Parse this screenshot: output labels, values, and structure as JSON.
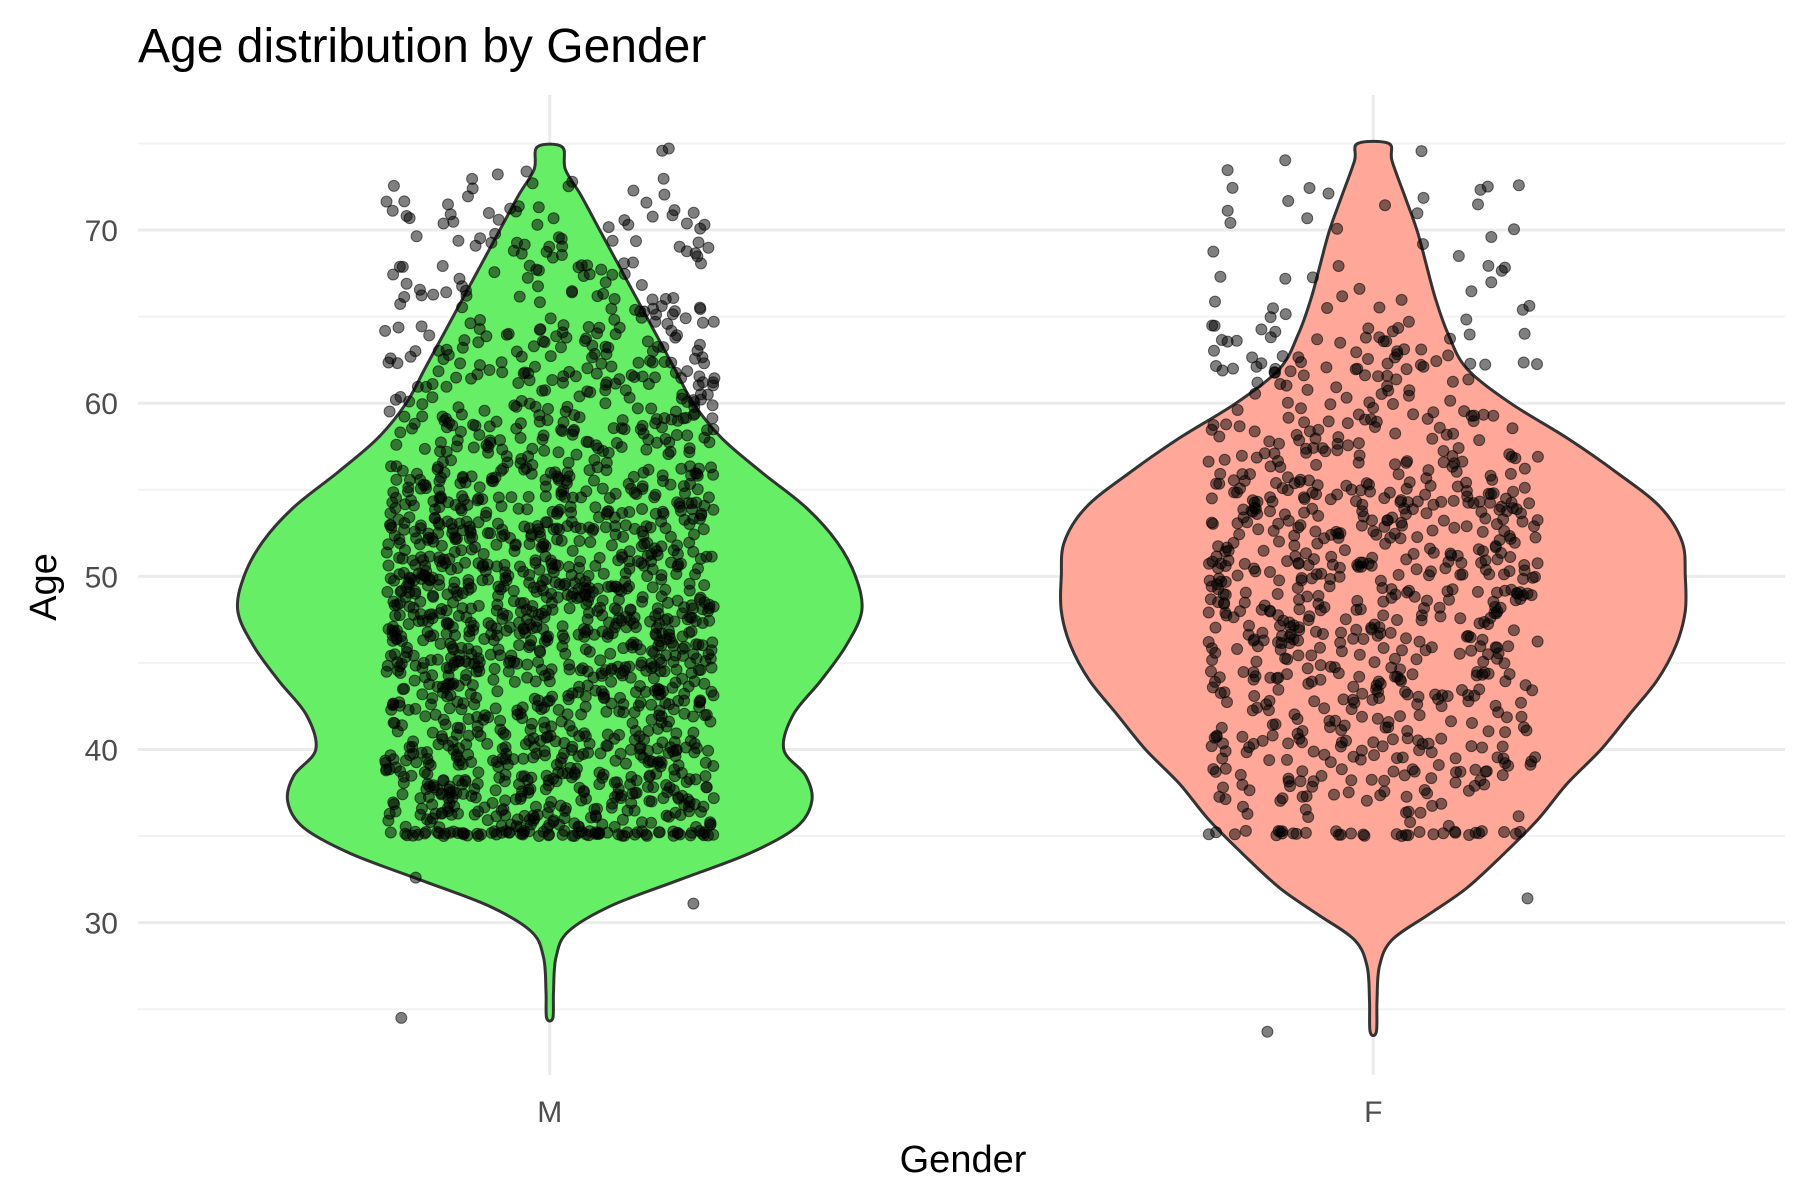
{
  "chart_data": {
    "type": "violin",
    "title": "Age distribution by Gender",
    "xlabel": "Gender",
    "ylabel": "Age",
    "categories": [
      "M",
      "F"
    ],
    "ylim": [
      21.2,
      77.8
    ],
    "yticks": [
      30,
      40,
      50,
      60,
      70
    ],
    "grid": true,
    "legend": "none",
    "series": [
      {
        "category": "M",
        "fill": "#66EE66",
        "y_min": 24.5,
        "y_max": 74.8,
        "density_profile": [
          [
            24.5,
            0.01
          ],
          [
            26,
            0.012
          ],
          [
            28,
            0.02
          ],
          [
            29.5,
            0.06
          ],
          [
            31,
            0.2
          ],
          [
            32.5,
            0.42
          ],
          [
            34,
            0.64
          ],
          [
            35.5,
            0.79
          ],
          [
            37,
            0.84
          ],
          [
            38.5,
            0.82
          ],
          [
            40,
            0.75
          ],
          [
            42,
            0.78
          ],
          [
            44,
            0.87
          ],
          [
            46,
            0.95
          ],
          [
            48,
            1.0
          ],
          [
            50,
            0.98
          ],
          [
            52,
            0.92
          ],
          [
            54,
            0.82
          ],
          [
            56,
            0.68
          ],
          [
            58,
            0.55
          ],
          [
            60,
            0.46
          ],
          [
            62,
            0.4
          ],
          [
            64,
            0.34
          ],
          [
            66,
            0.28
          ],
          [
            68,
            0.22
          ],
          [
            70,
            0.16
          ],
          [
            72,
            0.1
          ],
          [
            73.5,
            0.05
          ],
          [
            74.8,
            0.04
          ]
        ],
        "points": {
          "count": 1700,
          "jitter_range": [
            35,
            75
          ],
          "outliers": [
            24.5,
            31.1,
            32.6
          ]
        }
      },
      {
        "category": "F",
        "fill": "#FFA899",
        "y_min": 23.7,
        "y_max": 75,
        "density_profile": [
          [
            23.7,
            0.01
          ],
          [
            25.5,
            0.012
          ],
          [
            27.5,
            0.02
          ],
          [
            29,
            0.06
          ],
          [
            30.5,
            0.18
          ],
          [
            32,
            0.3
          ],
          [
            34,
            0.42
          ],
          [
            36,
            0.53
          ],
          [
            38,
            0.62
          ],
          [
            40,
            0.73
          ],
          [
            42,
            0.82
          ],
          [
            44,
            0.91
          ],
          [
            46,
            0.97
          ],
          [
            48,
            1.0
          ],
          [
            50,
            1.0
          ],
          [
            52,
            0.99
          ],
          [
            54,
            0.92
          ],
          [
            56,
            0.78
          ],
          [
            58,
            0.62
          ],
          [
            60,
            0.44
          ],
          [
            62,
            0.3
          ],
          [
            64,
            0.24
          ],
          [
            66,
            0.2
          ],
          [
            68,
            0.17
          ],
          [
            70,
            0.14
          ],
          [
            72,
            0.1
          ],
          [
            74,
            0.06
          ],
          [
            75,
            0.05
          ]
        ],
        "points": {
          "count": 850,
          "jitter_range": [
            35,
            75
          ],
          "outliers": [
            23.7,
            31.4
          ]
        }
      }
    ]
  }
}
